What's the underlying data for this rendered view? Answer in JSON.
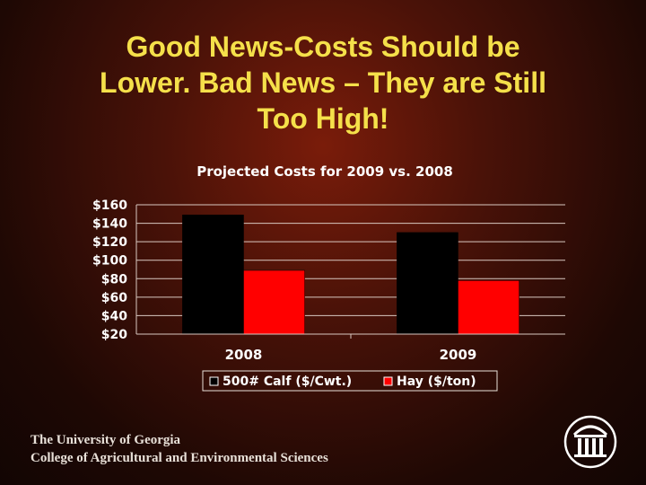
{
  "slide": {
    "title_lines": [
      "Good News-Costs Should be",
      "Lower.  Bad News – They are Still",
      "Too High!"
    ]
  },
  "chart_data": {
    "type": "bar",
    "title": "Projected Costs for 2009 vs. 2008",
    "categories": [
      "2008",
      "2009"
    ],
    "series": [
      {
        "name": "500# Calf ($/Cwt.)",
        "values": [
          149,
          130
        ],
        "color": "#000000"
      },
      {
        "name": "Hay ($/ton)",
        "values": [
          89,
          78
        ],
        "color": "#ff0000"
      }
    ],
    "ylim": [
      20,
      160
    ],
    "yticks": [
      20,
      40,
      60,
      80,
      100,
      120,
      140,
      160
    ],
    "ytick_labels": [
      "$20",
      "$40",
      "$60",
      "$80",
      "$100",
      "$120",
      "$140",
      "$160"
    ],
    "xlabel": "",
    "ylabel": "",
    "grid": true,
    "legend_position": "bottom"
  },
  "footer": {
    "line1": "The University of Georgia",
    "line2": "College of Agricultural and Environmental Sciences"
  },
  "logo": {
    "icon": "arch-icon"
  }
}
